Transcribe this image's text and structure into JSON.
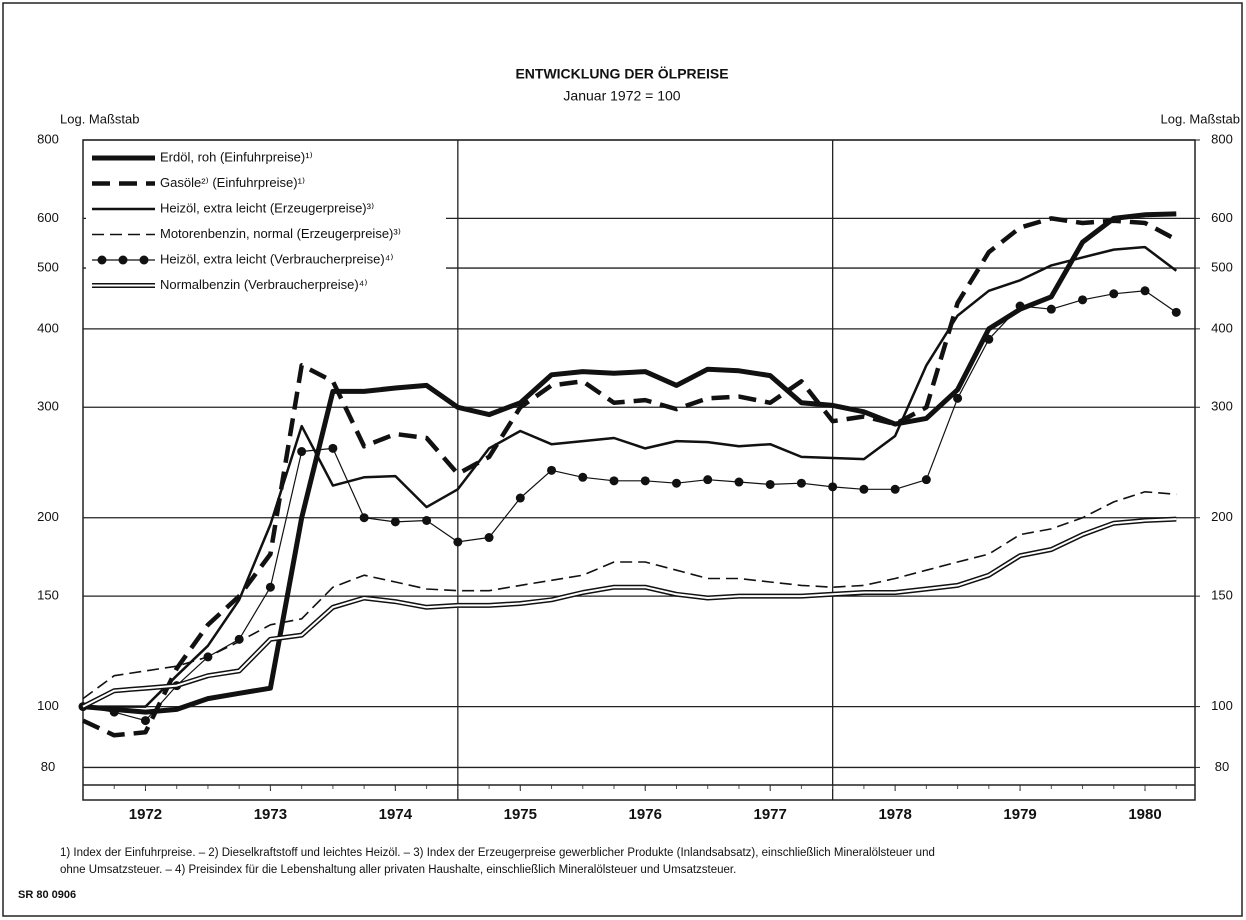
{
  "chart_data": {
    "type": "line",
    "title": "ENTWICKLUNG DER ÖLPREISE",
    "subtitle": "Januar 1972 = 100",
    "y_label": "Log. Maßstab",
    "y2_label": "Log. Maßstab",
    "log_y": true,
    "grid": true,
    "legend": "upper left",
    "x": [
      1972,
      1972.25,
      1972.5,
      1972.75,
      1973,
      1973.25,
      1973.5,
      1973.75,
      1974,
      1974.25,
      1974.5,
      1974.75,
      1975,
      1975.25,
      1975.5,
      1975.75,
      1976,
      1976.25,
      1976.5,
      1976.75,
      1977,
      1977.25,
      1977.5,
      1977.75,
      1978,
      1978.25,
      1978.5,
      1978.75,
      1979,
      1979.25,
      1979.5,
      1979.75,
      1980,
      1980.25,
      1980.5,
      1980.75
    ],
    "xlim": [
      1972,
      1980.9
    ],
    "xticks": [
      {
        "value": 1972.5,
        "label": "1972"
      },
      {
        "value": 1973.5,
        "label": "1973"
      },
      {
        "value": 1974.5,
        "label": "1974"
      },
      {
        "value": 1975.5,
        "label": "1975"
      },
      {
        "value": 1976.5,
        "label": "1976"
      },
      {
        "value": 1977.5,
        "label": "1977"
      },
      {
        "value": 1978.5,
        "label": "1978"
      },
      {
        "value": 1979.5,
        "label": "1979"
      },
      {
        "value": 1980.5,
        "label": "1980"
      }
    ],
    "x_gridlines": [
      1975,
      1978
    ],
    "ylim": [
      75,
      800
    ],
    "yticks": [
      80,
      100,
      150,
      200,
      300,
      400,
      500,
      600,
      800
    ],
    "y2lim": [
      75,
      800
    ],
    "y2ticks": [
      80,
      100,
      150,
      200,
      300,
      400,
      500,
      600,
      800
    ],
    "series": [
      {
        "name": "Erdöl, roh (Einfuhrpreise)¹⁾",
        "color": "#111111",
        "width": 5,
        "dash": "none",
        "marker": false,
        "double": false,
        "values": [
          100,
          99,
          98,
          99,
          103,
          105,
          107,
          200,
          318,
          318,
          322,
          325,
          300,
          292,
          305,
          338,
          342,
          340,
          342,
          325,
          345,
          343,
          337,
          305,
          302,
          295,
          282,
          288,
          320,
          400,
          430,
          450,
          550,
          600,
          608,
          610
        ]
      },
      {
        "name": "Gasöle²⁾ (Einfuhrpreise)¹⁾",
        "color": "#111111",
        "width": 4.5,
        "dash": "18 9",
        "marker": false,
        "double": false,
        "values": [
          95,
          90,
          91,
          115,
          135,
          150,
          175,
          350,
          330,
          260,
          272,
          268,
          235,
          250,
          300,
          325,
          330,
          305,
          308,
          298,
          310,
          312,
          305,
          330,
          285,
          290,
          282,
          300,
          440,
          530,
          580,
          600,
          590,
          595,
          590,
          555
        ]
      },
      {
        "name": "Heizöl, extra leicht (Erzeugerpreise)³⁾",
        "color": "#111111",
        "width": 2.5,
        "dash": "none",
        "marker": false,
        "double": false,
        "values": [
          100,
          100,
          100,
          112,
          125,
          148,
          195,
          280,
          225,
          232,
          233,
          208,
          222,
          258,
          275,
          262,
          265,
          268,
          258,
          265,
          264,
          260,
          262,
          250,
          249,
          248,
          270,
          350,
          420,
          460,
          478,
          505,
          520,
          535,
          540,
          495
        ]
      },
      {
        "name": "Motorenbenzin, normal (Erzeugerpreise)³⁾",
        "color": "#111111",
        "width": 1.6,
        "dash": "12 6",
        "marker": false,
        "double": false,
        "values": [
          103,
          112,
          114,
          116,
          120,
          127,
          135,
          138,
          155,
          162,
          158,
          154,
          153,
          153,
          156,
          159,
          162,
          170,
          170,
          165,
          160,
          160,
          158,
          156,
          155,
          156,
          160,
          165,
          170,
          175,
          188,
          192,
          200,
          212,
          220,
          218
        ]
      },
      {
        "name": "Heizöl, extra leicht (Verbraucherpreise)⁴⁾",
        "color": "#111111",
        "width": 1.2,
        "dash": "none",
        "marker": true,
        "double": false,
        "values": [
          100,
          98,
          95,
          108,
          120,
          128,
          155,
          255,
          258,
          200,
          197,
          198,
          183,
          186,
          215,
          238,
          232,
          229,
          229,
          227,
          230,
          228,
          226,
          227,
          224,
          222,
          222,
          230,
          310,
          385,
          435,
          430,
          445,
          455,
          460,
          425
        ]
      },
      {
        "name": "Normalbenzin (Verbraucherpreise)⁴⁾",
        "color": "#111111",
        "width": 5,
        "dash": "none",
        "marker": false,
        "double": true,
        "values": [
          100,
          106,
          107,
          108,
          112,
          114,
          128,
          130,
          144,
          149,
          147,
          144,
          145,
          145,
          146,
          148,
          152,
          155,
          155,
          151,
          149,
          150,
          150,
          150,
          151,
          152,
          152,
          154,
          156,
          162,
          174,
          178,
          188,
          196,
          198,
          199
        ]
      }
    ],
    "footnotes": [
      "1) Index der Einfuhrpreise. – 2) Dieselkraftstoff und leichtes Heizöl. – 3) Index der Erzeugerpreise gewerblicher Produkte (Inlandsabsatz), einschließlich Mineralölsteuer und",
      "ohne Umsatzsteuer. – 4) Preisindex für die Lebenshaltung aller privaten Haushalte, einschließlich Mineralölsteuer und Umsatzsteuer."
    ],
    "source": "SR 80 0906"
  }
}
